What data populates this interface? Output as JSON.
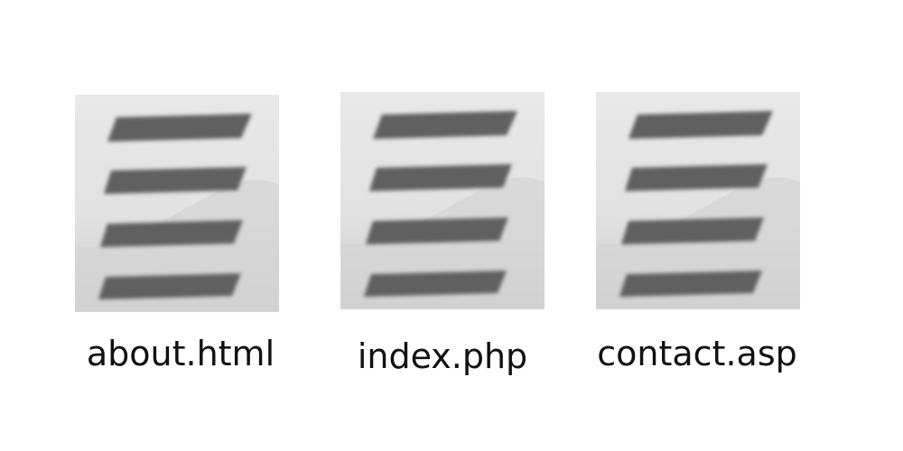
{
  "files": [
    {
      "name": "about.html",
      "icon": "text-document-icon"
    },
    {
      "name": "index.php",
      "icon": "text-document-icon"
    },
    {
      "name": "contact.asp",
      "icon": "text-document-icon"
    }
  ],
  "colors": {
    "icon_background": "#e4e4e4",
    "icon_lines": "#606060",
    "label_text": "#111111"
  }
}
